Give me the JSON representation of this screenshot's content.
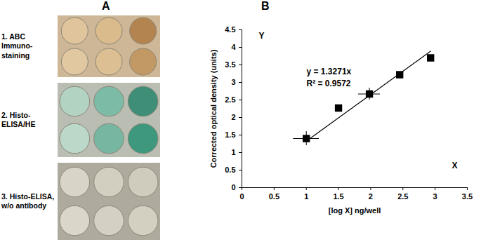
{
  "chart_data": {
    "type": "scatter",
    "panel_label": "B",
    "x_label": "[log X] ng/well",
    "y_label": "Corrected optical density (units)",
    "axis_names": {
      "x": "X",
      "y": "Y"
    },
    "x": [
      1.0,
      1.5,
      1.98,
      2.45,
      2.93
    ],
    "values": [
      1.4,
      2.27,
      2.67,
      3.22,
      3.7
    ],
    "x_error": [
      0.2,
      0.04,
      0.17,
      0.03,
      0.03
    ],
    "y_error": [
      0.2,
      0.06,
      0.17,
      0.05,
      0.05
    ],
    "color": "#000000",
    "marker": "square",
    "xlim": [
      0,
      3.5
    ],
    "xticks": [
      0,
      0.5,
      1,
      1.5,
      2,
      2.5,
      3,
      3.5
    ],
    "ylim": [
      0,
      4.5
    ],
    "yticks": [
      0,
      0.5,
      1,
      1.5,
      2,
      2.5,
      3,
      3.5,
      4,
      4.5
    ],
    "trendline": {
      "slope": 1.3271,
      "x_range": [
        1.0,
        2.93
      ],
      "equation": "y = 1.3271x",
      "r_squared": "R² = 0.9572"
    }
  },
  "image_panel": {
    "label": "A",
    "rows": [
      {
        "label": "1. ABC Immuno-staining",
        "wells": [
          [
            "#e0c49b",
            "#d9bb8c",
            "#b3844f"
          ],
          [
            "#e2c8a0",
            "#dcbf92",
            "#c29864"
          ]
        ]
      },
      {
        "label": "2. Histo-ELISA/HE",
        "wells": [
          [
            "#b3d3c2",
            "#7cbba6",
            "#3f8f78"
          ],
          [
            "#bcd8c8",
            "#77b7a2",
            "#3d987e"
          ]
        ]
      },
      {
        "label": "3. Histo-ELISA, w/o antibody",
        "wells": [
          [
            "#d8d5c8",
            "#d2cfc1",
            "#cfccbd"
          ],
          [
            "#dad7ca",
            "#d4d1c4",
            "#d3d0c2"
          ]
        ]
      }
    ]
  }
}
